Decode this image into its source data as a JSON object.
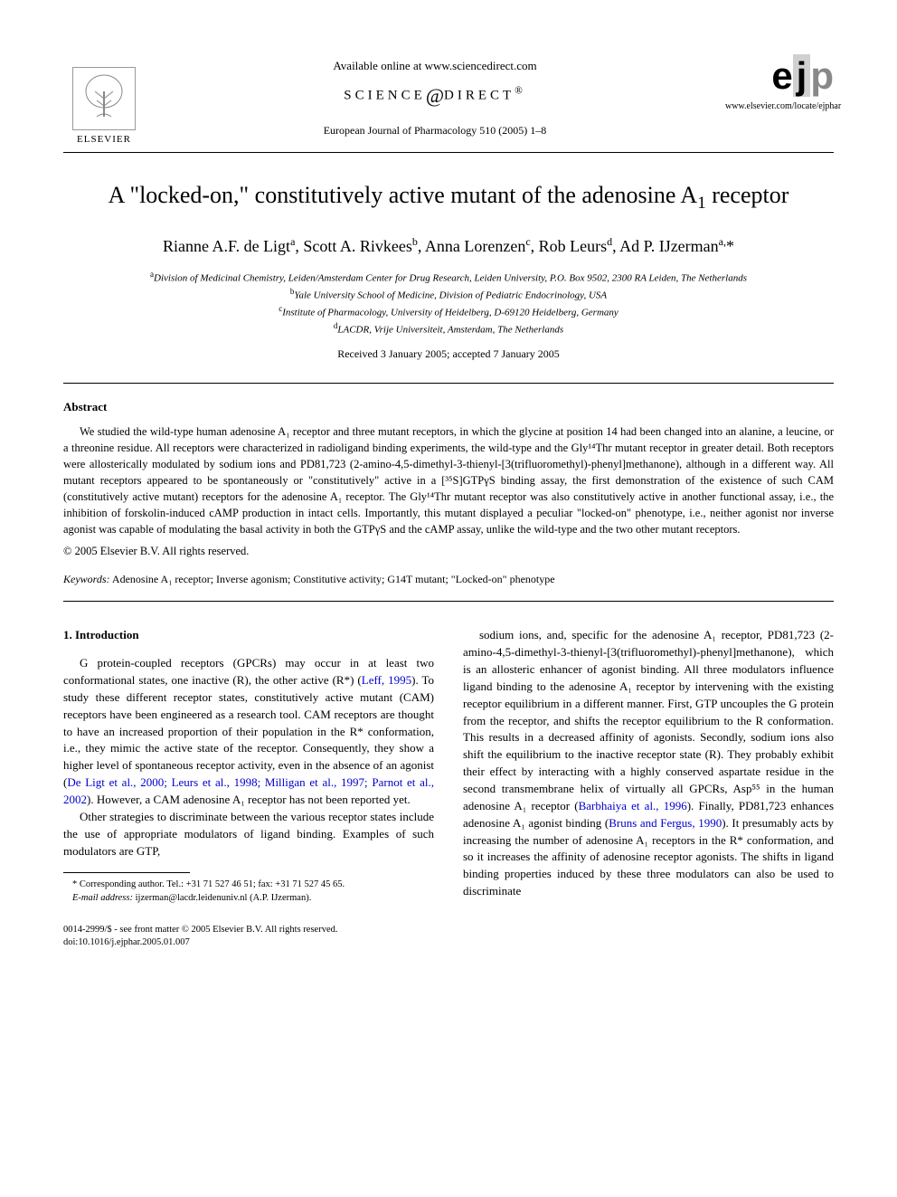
{
  "header": {
    "available_online": "Available online at www.sciencedirect.com",
    "sciencedirect": "SCIENCE",
    "sciencedirect_suffix": "DIRECT",
    "journal_citation": "European Journal of Pharmacology 510 (2005) 1–8",
    "elsevier_label": "ELSEVIER",
    "ejp_url": "www.elsevier.com/locate/ejphar"
  },
  "title_parts": {
    "pre": "A \"locked-on,\" constitutively active mutant of the adenosine A",
    "sub": "1",
    "post": " receptor"
  },
  "authors_html": "Rianne A.F. de Ligt<sup>a</sup>, Scott A. Rivkees<sup>b</sup>, Anna Lorenzen<sup>c</sup>, Rob Leurs<sup>d</sup>, Ad P. IJzerman<sup>a,</sup>*",
  "affiliations": {
    "a": "Division of Medicinal Chemistry, Leiden/Amsterdam Center for Drug Research, Leiden University, P.O. Box 9502, 2300 RA Leiden, The Netherlands",
    "b": "Yale University School of Medicine, Division of Pediatric Endocrinology, USA",
    "c": "Institute of Pharmacology, University of Heidelberg, D-69120 Heidelberg, Germany",
    "d": "LACDR, Vrije Universiteit, Amsterdam, The Netherlands"
  },
  "received": "Received 3 January 2005; accepted 7 January 2005",
  "abstract": {
    "heading": "Abstract",
    "body": "We studied the wild-type human adenosine A₁ receptor and three mutant receptors, in which the glycine at position 14 had been changed into an alanine, a leucine, or a threonine residue. All receptors were characterized in radioligand binding experiments, the wild-type and the Gly¹⁴Thr mutant receptor in greater detail. Both receptors were allosterically modulated by sodium ions and PD81,723 (2-amino-4,5-dimethyl-3-thienyl-[3(trifluoromethyl)-phenyl]methanone), although in a different way. All mutant receptors appeared to be spontaneously or \"constitutively\" active in a [³⁵S]GTPγS binding assay, the first demonstration of the existence of such CAM (constitutively active mutant) receptors for the adenosine A₁ receptor. The Gly¹⁴Thr mutant receptor was also constitutively active in another functional assay, i.e., the inhibition of forskolin-induced cAMP production in intact cells. Importantly, this mutant displayed a peculiar \"locked-on\" phenotype, i.e., neither agonist nor inverse agonist was capable of modulating the basal activity in both the GTPγS and the cAMP assay, unlike the wild-type and the two other mutant receptors.",
    "copyright": "© 2005 Elsevier B.V. All rights reserved."
  },
  "keywords": {
    "label": "Keywords:",
    "text": " Adenosine A₁ receptor; Inverse agonism; Constitutive activity; G14T mutant; \"Locked-on\" phenotype"
  },
  "intro": {
    "heading": "1. Introduction",
    "p1_a": "G protein-coupled receptors (GPCRs) may occur in at least two conformational states, one inactive (R), the other active (R*) (",
    "p1_cite1": "Leff, 1995",
    "p1_b": "). To study these different receptor states, constitutively active mutant (CAM) receptors have been engineered as a research tool. CAM receptors are thought to have an increased proportion of their population in the R* conformation, i.e., they mimic the active state of the receptor. Consequently, they show a higher level of spontaneous receptor activity, even in the absence of an agonist (",
    "p1_cite2": "De Ligt et al., 2000; Leurs et al., 1998; Milligan et al., 1997; Parnot et al., 2002",
    "p1_c": "). However, a CAM adenosine A₁ receptor has not been reported yet.",
    "p2": "Other strategies to discriminate between the various receptor states include the use of appropriate modulators of ligand binding. Examples of such modulators are GTP,",
    "p3_a": "sodium ions, and, specific for the adenosine A₁ receptor, PD81,723 (2-amino-4,5-dimethyl-3-thienyl-[3(trifluoromethyl)-phenyl]methanone), which is an allosteric enhancer of agonist binding. All three modulators influence ligand binding to the adenosine A₁ receptor by intervening with the existing receptor equilibrium in a different manner. First, GTP uncouples the G protein from the receptor, and shifts the receptor equilibrium to the R conformation. This results in a decreased affinity of agonists. Secondly, sodium ions also shift the equilibrium to the inactive receptor state (R). They probably exhibit their effect by interacting with a highly conserved aspartate residue in the second transmembrane helix of virtually all GPCRs, Asp⁵⁵ in the human adenosine A₁ receptor (",
    "p3_cite1": "Barbhaiya et al., 1996",
    "p3_b": "). Finally, PD81,723 enhances adenosine A₁ agonist binding (",
    "p3_cite2": "Bruns and Fergus, 1990",
    "p3_c": "). It presumably acts by increasing the number of adenosine A₁ receptors in the R* conformation, and so it increases the affinity of adenosine receptor agonists. The shifts in ligand binding properties induced by these three modulators can also be used to discriminate"
  },
  "footnote": {
    "corr": "* Corresponding author. Tel.: +31 71 527 46 51; fax: +31 71 527 45 65.",
    "email_label": "E-mail address:",
    "email": " ijzerman@lacdr.leidenuniv.nl (A.P. IJzerman)."
  },
  "footer": {
    "line1": "0014-2999/$ - see front matter © 2005 Elsevier B.V. All rights reserved.",
    "line2": "doi:10.1016/j.ejphar.2005.01.007"
  },
  "colors": {
    "text": "#000000",
    "link": "#0000cc",
    "background": "#ffffff",
    "rule": "#000000"
  }
}
